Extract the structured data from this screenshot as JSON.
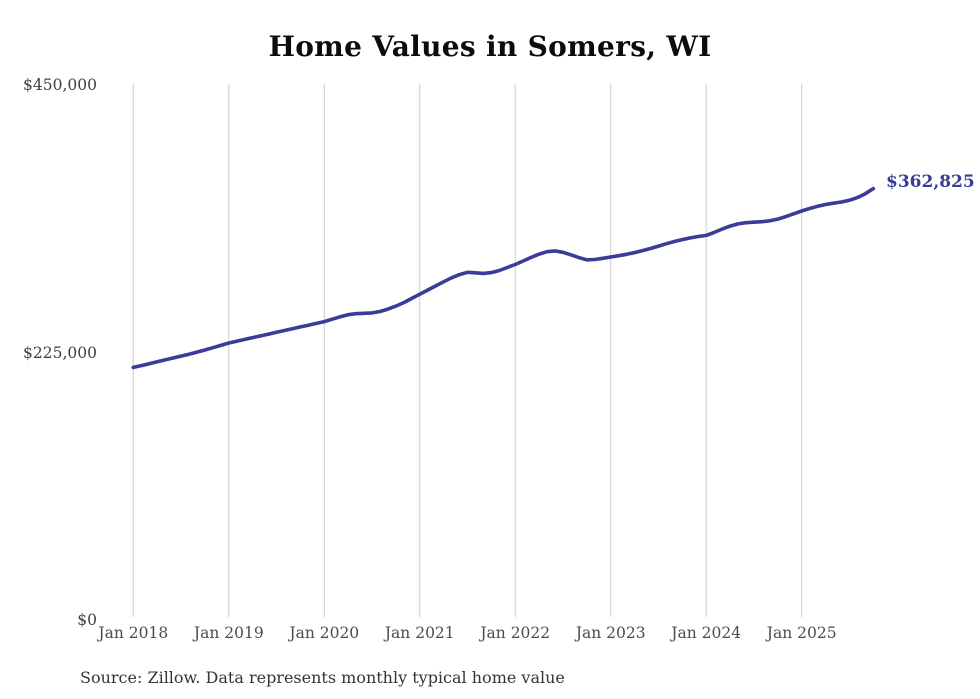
{
  "chart": {
    "title": "Home Values in Somers, WI",
    "source": "Source: Zillow. Data represents monthly typical home value",
    "end_label": "$362,825",
    "line_color": "#3b3b98",
    "grid_color": "#cccccc"
  },
  "chart_data": {
    "type": "line",
    "title": "Home Values in Somers, WI",
    "ylabel": "",
    "xlabel": "",
    "ylim": [
      0,
      450000
    ],
    "grid": "vertical-only",
    "legend": "none",
    "source_note": "Source: Zillow. Data represents monthly typical home value",
    "end_annotation": {
      "label": "$362,825",
      "value": 362825,
      "date": "2025-10"
    },
    "y_tick_labels": [
      "$450,000",
      "$225,000",
      "$0"
    ],
    "y_tick_values": [
      450000,
      225000,
      0
    ],
    "x_tick_labels": [
      "Jan 2018",
      "Jan 2019",
      "Jan 2020",
      "Jan 2021",
      "Jan 2022",
      "Jan 2023",
      "Jan 2024",
      "Jan 2025"
    ],
    "x_tick_month_indices": [
      0,
      12,
      24,
      36,
      48,
      60,
      72,
      84
    ],
    "x": [
      "2018-01",
      "2018-02",
      "2018-03",
      "2018-04",
      "2018-05",
      "2018-06",
      "2018-07",
      "2018-08",
      "2018-09",
      "2018-10",
      "2018-11",
      "2018-12",
      "2019-01",
      "2019-02",
      "2019-03",
      "2019-04",
      "2019-05",
      "2019-06",
      "2019-07",
      "2019-08",
      "2019-09",
      "2019-10",
      "2019-11",
      "2019-12",
      "2020-01",
      "2020-02",
      "2020-03",
      "2020-04",
      "2020-05",
      "2020-06",
      "2020-07",
      "2020-08",
      "2020-09",
      "2020-10",
      "2020-11",
      "2020-12",
      "2021-01",
      "2021-02",
      "2021-03",
      "2021-04",
      "2021-05",
      "2021-06",
      "2021-07",
      "2021-08",
      "2021-09",
      "2021-10",
      "2021-11",
      "2021-12",
      "2022-01",
      "2022-02",
      "2022-03",
      "2022-04",
      "2022-05",
      "2022-06",
      "2022-07",
      "2022-08",
      "2022-09",
      "2022-10",
      "2022-11",
      "2022-12",
      "2023-01",
      "2023-02",
      "2023-03",
      "2023-04",
      "2023-05",
      "2023-06",
      "2023-07",
      "2023-08",
      "2023-09",
      "2023-10",
      "2023-11",
      "2023-12",
      "2024-01",
      "2024-02",
      "2024-03",
      "2024-04",
      "2024-05",
      "2024-06",
      "2024-07",
      "2024-08",
      "2024-09",
      "2024-10",
      "2024-11",
      "2024-12",
      "2025-01",
      "2025-02",
      "2025-03",
      "2025-04",
      "2025-05",
      "2025-06",
      "2025-07",
      "2025-08",
      "2025-09",
      "2025-10"
    ],
    "values": [
      212500,
      214000,
      215600,
      217200,
      218800,
      220400,
      222000,
      223600,
      225300,
      227100,
      229000,
      231000,
      233000,
      234500,
      236000,
      237500,
      239000,
      240500,
      242000,
      243500,
      245000,
      246500,
      248000,
      249500,
      251000,
      253000,
      255000,
      256800,
      257600,
      258000,
      258300,
      259500,
      261500,
      264000,
      267000,
      270500,
      274000,
      277500,
      281000,
      284500,
      287800,
      290500,
      292500,
      292000,
      291500,
      292200,
      294000,
      296500,
      299000,
      302000,
      305000,
      307800,
      309800,
      310500,
      309300,
      307200,
      304800,
      303000,
      303200,
      304200,
      305300,
      306400,
      307600,
      309000,
      310700,
      312500,
      314500,
      316500,
      318400,
      320000,
      321400,
      322600,
      323500,
      326000,
      328800,
      331300,
      333200,
      334200,
      334600,
      335000,
      335800,
      337200,
      339300,
      341700,
      344000,
      346100,
      348000,
      349500,
      350600,
      351600,
      353000,
      355300,
      358600,
      362825
    ]
  }
}
